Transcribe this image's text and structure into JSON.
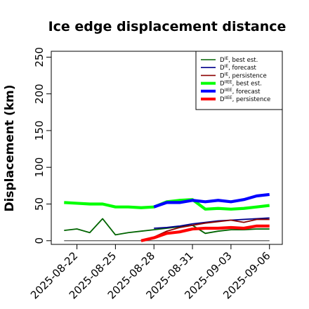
{
  "chart_data": {
    "type": "line",
    "title": "Ice edge displacement distance",
    "xlabel": "",
    "ylabel": "Displacement (km)",
    "ylim": [
      -5,
      258
    ],
    "xlim": [
      "2025-08-20",
      "2025-09-07"
    ],
    "yticks": [
      0,
      50,
      100,
      150,
      200,
      250
    ],
    "xticks": [
      "2025-08-22",
      "2025-08-25",
      "2025-08-28",
      "2025-08-31",
      "2025-09-03",
      "2025-09-06"
    ],
    "highlighted_xtick": "2025-08-28",
    "highlight_color": "#228b22",
    "grid": false,
    "legend_position": "top-right",
    "reference_line": {
      "y": 0,
      "color": "#555555",
      "x_start": "2025-08-21",
      "x_end": "2025-09-06"
    },
    "series": [
      {
        "name": "D^IE, best est.",
        "base": "D",
        "sup": "IE",
        "suffix": ", best est.",
        "color": "#006400",
        "style": "thin",
        "x": [
          "2025-08-21",
          "2025-08-22",
          "2025-08-23",
          "2025-08-24",
          "2025-08-25",
          "2025-08-26",
          "2025-08-27",
          "2025-08-28",
          "2025-08-29",
          "2025-08-30",
          "2025-08-31",
          "2025-09-01",
          "2025-09-02",
          "2025-09-03",
          "2025-09-04",
          "2025-09-05",
          "2025-09-06"
        ],
        "values": [
          14,
          16,
          11,
          30,
          8,
          11,
          13,
          15,
          17,
          19,
          21,
          10,
          13,
          15,
          15,
          16,
          16
        ]
      },
      {
        "name": "D^IE, forecast",
        "base": "D",
        "sup": "IE",
        "suffix": ", forecast",
        "color": "#00008b",
        "style": "thin",
        "x": [
          "2025-08-28",
          "2025-08-29",
          "2025-08-30",
          "2025-08-31",
          "2025-09-01",
          "2025-09-02",
          "2025-09-03",
          "2025-09-04",
          "2025-09-05",
          "2025-09-06"
        ],
        "values": [
          17,
          18,
          20,
          23,
          25,
          27,
          28,
          29,
          30,
          31
        ]
      },
      {
        "name": "D^IE, persistence",
        "base": "D",
        "sup": "IE",
        "suffix": ", persistence",
        "color": "#8b0000",
        "style": "thin",
        "x": [
          "2025-08-28",
          "2025-08-29",
          "2025-08-30",
          "2025-08-31",
          "2025-09-01",
          "2025-09-02",
          "2025-09-03",
          "2025-09-04",
          "2025-09-05",
          "2025-09-06"
        ],
        "values": [
          5,
          13,
          18,
          21,
          24,
          26,
          28,
          25,
          29,
          29
        ]
      },
      {
        "name": "D^IIEE, best est.",
        "base": "D",
        "sup": "IIEE",
        "suffix": ", best est.",
        "color": "#00ff00",
        "style": "thick",
        "x": [
          "2025-08-21",
          "2025-08-22",
          "2025-08-23",
          "2025-08-24",
          "2025-08-25",
          "2025-08-26",
          "2025-08-27",
          "2025-08-28",
          "2025-08-29",
          "2025-08-30",
          "2025-08-31",
          "2025-09-01",
          "2025-09-02",
          "2025-09-03",
          "2025-09-04",
          "2025-09-05",
          "2025-09-06"
        ],
        "values": [
          52,
          51,
          50,
          50,
          46,
          46,
          45,
          46,
          53,
          55,
          56,
          43,
          44,
          43,
          44,
          46,
          48
        ]
      },
      {
        "name": "D^IIEE, forecast",
        "base": "D",
        "sup": "IIEE",
        "suffix": ", forecast",
        "color": "#0000ff",
        "style": "thick",
        "x": [
          "2025-08-28",
          "2025-08-29",
          "2025-08-30",
          "2025-08-31",
          "2025-09-01",
          "2025-09-02",
          "2025-09-03",
          "2025-09-04",
          "2025-09-05",
          "2025-09-06"
        ],
        "values": [
          46,
          52,
          52,
          55,
          53,
          55,
          53,
          56,
          61,
          63
        ]
      },
      {
        "name": "D^IIEE, persistence",
        "base": "D",
        "sup": "IIEE",
        "suffix": ", persistence",
        "color": "#ff0000",
        "style": "thick",
        "x": [
          "2025-08-27",
          "2025-08-28",
          "2025-08-29",
          "2025-08-30",
          "2025-08-31",
          "2025-09-01",
          "2025-09-02",
          "2025-09-03",
          "2025-09-04",
          "2025-09-05",
          "2025-09-06"
        ],
        "values": [
          0,
          4,
          10,
          12,
          16,
          17,
          17,
          18,
          17,
          20,
          20
        ]
      }
    ]
  }
}
